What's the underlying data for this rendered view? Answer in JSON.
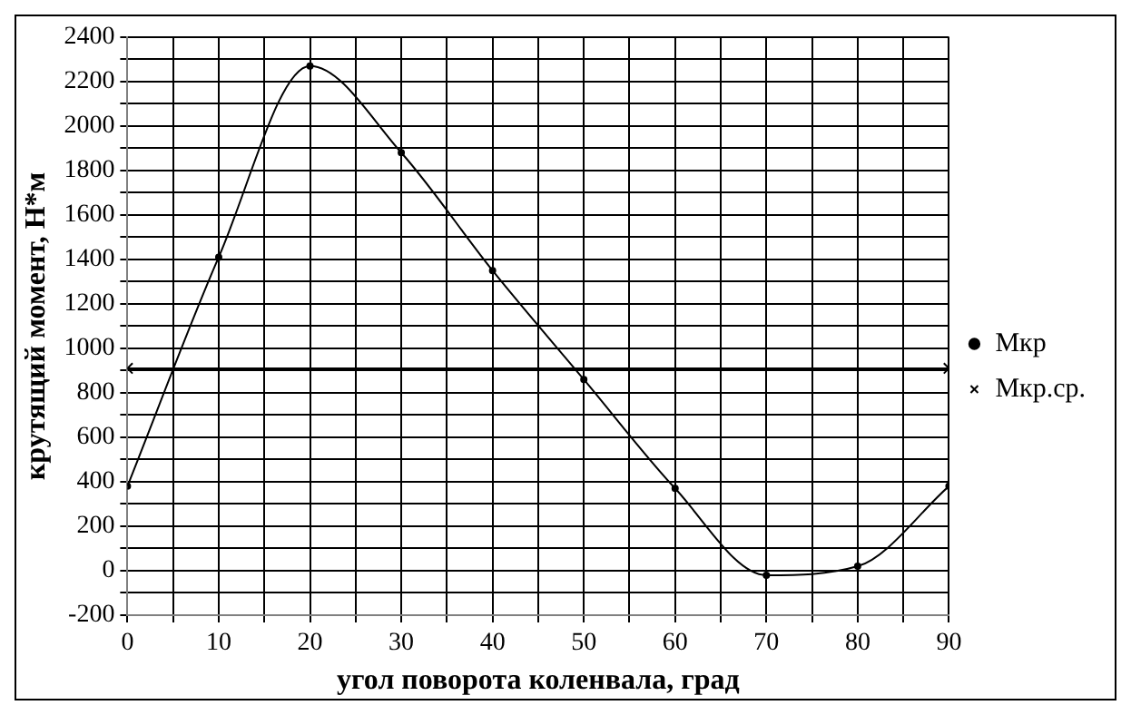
{
  "chart_data": {
    "type": "line",
    "xlabel": "угол поворота коленвала, град",
    "ylabel": "крутящий момент, Н*м",
    "x": [
      0,
      10,
      20,
      30,
      40,
      50,
      60,
      70,
      80,
      90
    ],
    "series": [
      {
        "name": "Мкр",
        "color": "#000000",
        "marker": "circle",
        "values": [
          380,
          1410,
          2270,
          1880,
          1350,
          860,
          370,
          -20,
          20,
          380
        ]
      },
      {
        "name": "Мкр.ср.",
        "color": "#000000",
        "marker": "cross",
        "x": [
          0,
          90
        ],
        "values": [
          910,
          910
        ]
      }
    ],
    "xlim": [
      0,
      90
    ],
    "xticks": [
      0,
      {
        "value": 5,
        "label": null
      },
      10,
      {
        "value": 15,
        "label": null
      },
      20,
      {
        "value": 25,
        "label": null
      },
      30,
      {
        "value": 35,
        "label": null
      },
      40,
      {
        "value": 45,
        "label": null
      },
      50,
      {
        "value": 55,
        "label": null
      },
      60,
      {
        "value": 65,
        "label": null
      },
      70,
      {
        "value": 75,
        "label": null
      },
      80,
      {
        "value": 85,
        "label": null
      },
      90
    ],
    "ylim": [
      -200,
      2400
    ],
    "yticks": [
      -200,
      {
        "value": -100,
        "label": null
      },
      0,
      {
        "value": 100,
        "label": null
      },
      200,
      {
        "value": 300,
        "label": null
      },
      400,
      {
        "value": 500,
        "label": null
      },
      600,
      {
        "value": 700,
        "label": null
      },
      800,
      {
        "value": 900,
        "label": null
      },
      1000,
      {
        "value": 1100,
        "label": null
      },
      1200,
      {
        "value": 1300,
        "label": null
      },
      1400,
      {
        "value": 1500,
        "label": null
      },
      1600,
      {
        "value": 1700,
        "label": null
      },
      1800,
      {
        "value": 1900,
        "label": null
      },
      2000,
      {
        "value": 2100,
        "label": null
      },
      2200,
      {
        "value": 2300,
        "label": null
      },
      2400
    ],
    "grid": true,
    "legend": "right"
  }
}
